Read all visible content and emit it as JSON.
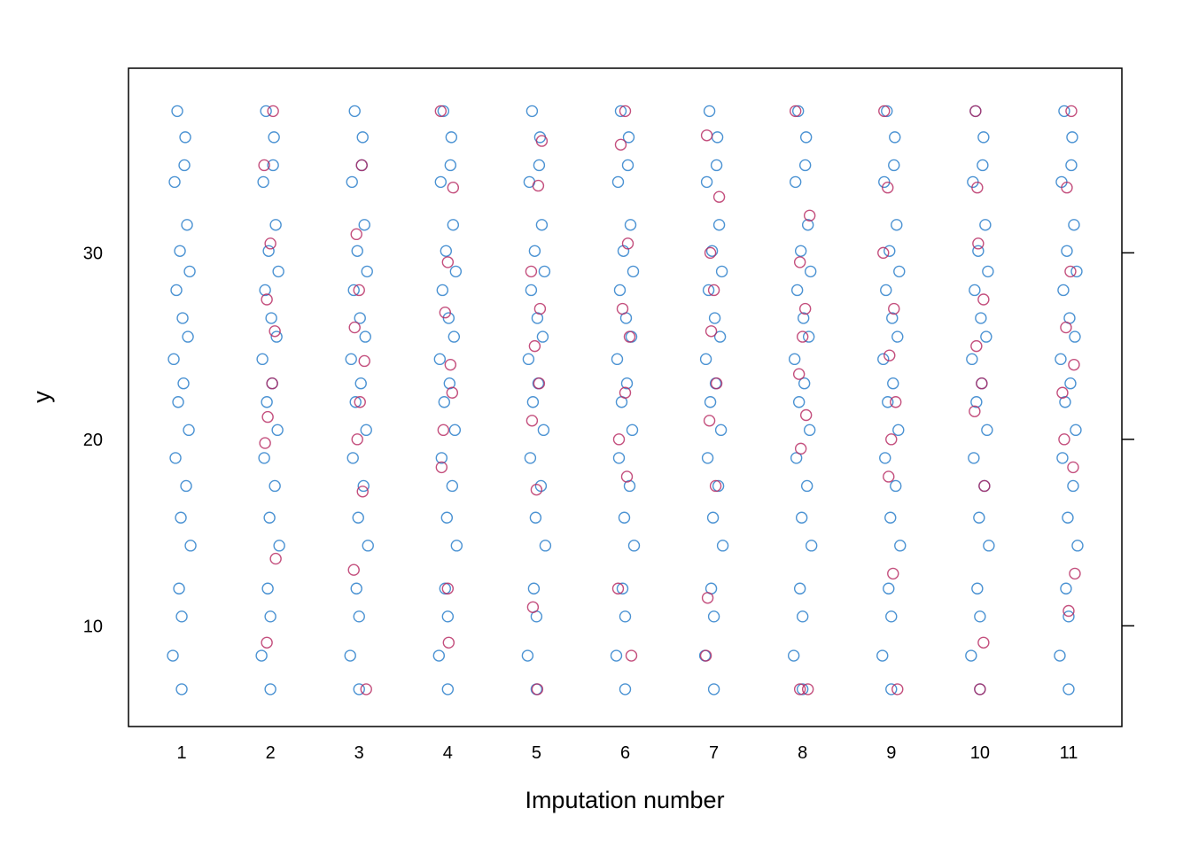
{
  "chart_data": {
    "type": "scatter",
    "xlabel": "Imputation number",
    "ylabel": "y",
    "xlim": [
      0.4,
      11.6
    ],
    "ylim": [
      4.6,
      39.9
    ],
    "xticks": [
      1,
      2,
      3,
      4,
      5,
      6,
      7,
      8,
      9,
      10,
      11
    ],
    "yticks": [
      10,
      20,
      30
    ],
    "series": [
      {
        "color": "#1f78c8",
        "x": [
          0.95,
          1.04,
          1.03,
          0.92,
          1.06,
          0.98,
          1.09,
          0.94,
          1.01,
          1.07,
          0.91,
          1.02,
          0.96,
          1.08,
          0.93,
          1.05,
          0.99,
          1.1,
          0.97,
          1.0,
          0.9,
          1.0
        ],
        "values": [
          37.6,
          36.2,
          34.7,
          33.8,
          31.5,
          30.1,
          29.0,
          28.0,
          26.5,
          25.5,
          24.3,
          23.0,
          22.0,
          20.5,
          19.0,
          17.5,
          15.8,
          14.3,
          12.0,
          10.5,
          8.4,
          6.6
        ]
      },
      {
        "color": "#1f78c8",
        "x": [
          1.95,
          2.04,
          2.03,
          1.92,
          2.06,
          1.98,
          2.09,
          1.94,
          2.01,
          2.07,
          1.91,
          2.02,
          1.96,
          2.08,
          1.93,
          2.05,
          1.99,
          2.1,
          1.97,
          2.0,
          1.9,
          2.0
        ],
        "values": [
          37.6,
          36.2,
          34.7,
          33.8,
          31.5,
          30.1,
          29.0,
          28.0,
          26.5,
          25.5,
          24.3,
          23.0,
          22.0,
          20.5,
          19.0,
          17.5,
          15.8,
          14.3,
          12.0,
          10.5,
          8.4,
          6.6
        ]
      },
      {
        "color": "#1f78c8",
        "x": [
          2.95,
          3.04,
          3.03,
          2.92,
          3.06,
          2.98,
          3.09,
          2.94,
          3.01,
          3.07,
          2.91,
          3.02,
          2.96,
          3.08,
          2.93,
          3.05,
          2.99,
          3.1,
          2.97,
          3.0,
          2.9,
          3.0
        ],
        "values": [
          37.6,
          36.2,
          34.7,
          33.8,
          31.5,
          30.1,
          29.0,
          28.0,
          26.5,
          25.5,
          24.3,
          23.0,
          22.0,
          20.5,
          19.0,
          17.5,
          15.8,
          14.3,
          12.0,
          10.5,
          8.4,
          6.6
        ]
      },
      {
        "color": "#1f78c8",
        "x": [
          3.95,
          4.04,
          4.03,
          3.92,
          4.06,
          3.98,
          4.09,
          3.94,
          4.01,
          4.07,
          3.91,
          4.02,
          3.96,
          4.08,
          3.93,
          4.05,
          3.99,
          4.1,
          3.97,
          4.0,
          3.9,
          4.0
        ],
        "values": [
          37.6,
          36.2,
          34.7,
          33.8,
          31.5,
          30.1,
          29.0,
          28.0,
          26.5,
          25.5,
          24.3,
          23.0,
          22.0,
          20.5,
          19.0,
          17.5,
          15.8,
          14.3,
          12.0,
          10.5,
          8.4,
          6.6
        ]
      },
      {
        "color": "#1f78c8",
        "x": [
          4.95,
          5.04,
          5.03,
          4.92,
          5.06,
          4.98,
          5.09,
          4.94,
          5.01,
          5.07,
          4.91,
          5.02,
          4.96,
          5.08,
          4.93,
          5.05,
          4.99,
          5.1,
          4.97,
          5.0,
          4.9,
          5.0
        ],
        "values": [
          37.6,
          36.2,
          34.7,
          33.8,
          31.5,
          30.1,
          29.0,
          28.0,
          26.5,
          25.5,
          24.3,
          23.0,
          22.0,
          20.5,
          19.0,
          17.5,
          15.8,
          14.3,
          12.0,
          10.5,
          8.4,
          6.6
        ]
      },
      {
        "color": "#1f78c8",
        "x": [
          5.95,
          6.04,
          6.03,
          5.92,
          6.06,
          5.98,
          6.09,
          5.94,
          6.01,
          6.07,
          5.91,
          6.02,
          5.96,
          6.08,
          5.93,
          6.05,
          5.99,
          6.1,
          5.97,
          6.0,
          5.9,
          6.0
        ],
        "values": [
          37.6,
          36.2,
          34.7,
          33.8,
          31.5,
          30.1,
          29.0,
          28.0,
          26.5,
          25.5,
          24.3,
          23.0,
          22.0,
          20.5,
          19.0,
          17.5,
          15.8,
          14.3,
          12.0,
          10.5,
          8.4,
          6.6
        ]
      },
      {
        "color": "#1f78c8",
        "x": [
          6.95,
          7.04,
          7.03,
          6.92,
          7.06,
          6.98,
          7.09,
          6.94,
          7.01,
          7.07,
          6.91,
          7.02,
          6.96,
          7.08,
          6.93,
          7.05,
          6.99,
          7.1,
          6.97,
          7.0,
          6.9,
          7.0
        ],
        "values": [
          37.6,
          36.2,
          34.7,
          33.8,
          31.5,
          30.1,
          29.0,
          28.0,
          26.5,
          25.5,
          24.3,
          23.0,
          22.0,
          20.5,
          19.0,
          17.5,
          15.8,
          14.3,
          12.0,
          10.5,
          8.4,
          6.6
        ]
      },
      {
        "color": "#1f78c8",
        "x": [
          7.95,
          8.04,
          8.03,
          7.92,
          8.06,
          7.98,
          8.09,
          7.94,
          8.01,
          8.07,
          7.91,
          8.02,
          7.96,
          8.08,
          7.93,
          8.05,
          7.99,
          8.1,
          7.97,
          8.0,
          7.9,
          8.0
        ],
        "values": [
          37.6,
          36.2,
          34.7,
          33.8,
          31.5,
          30.1,
          29.0,
          28.0,
          26.5,
          25.5,
          24.3,
          23.0,
          22.0,
          20.5,
          19.0,
          17.5,
          15.8,
          14.3,
          12.0,
          10.5,
          8.4,
          6.6
        ]
      },
      {
        "color": "#1f78c8",
        "x": [
          8.95,
          9.04,
          9.03,
          8.92,
          9.06,
          8.98,
          9.09,
          8.94,
          9.01,
          9.07,
          8.91,
          9.02,
          8.96,
          9.08,
          8.93,
          9.05,
          8.99,
          9.1,
          8.97,
          9.0,
          8.9,
          9.0
        ],
        "values": [
          37.6,
          36.2,
          34.7,
          33.8,
          31.5,
          30.1,
          29.0,
          28.0,
          26.5,
          25.5,
          24.3,
          23.0,
          22.0,
          20.5,
          19.0,
          17.5,
          15.8,
          14.3,
          12.0,
          10.5,
          8.4,
          6.6
        ]
      },
      {
        "color": "#1f78c8",
        "x": [
          9.95,
          10.04,
          10.03,
          9.92,
          10.06,
          9.98,
          10.09,
          9.94,
          10.01,
          10.07,
          9.91,
          10.02,
          9.96,
          10.08,
          9.93,
          10.05,
          9.99,
          10.1,
          9.97,
          10.0,
          9.9,
          10.0
        ],
        "values": [
          37.6,
          36.2,
          34.7,
          33.8,
          31.5,
          30.1,
          29.0,
          28.0,
          26.5,
          25.5,
          24.3,
          23.0,
          22.0,
          20.5,
          19.0,
          17.5,
          15.8,
          14.3,
          12.0,
          10.5,
          8.4,
          6.6
        ]
      },
      {
        "color": "#1f78c8",
        "x": [
          10.95,
          11.04,
          11.03,
          10.92,
          11.06,
          10.98,
          11.09,
          10.94,
          11.01,
          11.07,
          10.91,
          11.02,
          10.96,
          11.08,
          10.93,
          11.05,
          10.99,
          11.1,
          10.97,
          11.0,
          10.9,
          11.0
        ],
        "values": [
          37.6,
          36.2,
          34.7,
          33.8,
          31.5,
          30.1,
          29.0,
          28.0,
          26.5,
          25.5,
          24.3,
          23.0,
          22.0,
          20.5,
          19.0,
          17.5,
          15.8,
          14.3,
          12.0,
          10.5,
          8.4,
          6.6
        ]
      },
      {
        "color": "#b5245e",
        "x": [
          2.03,
          1.93,
          2.0,
          1.96,
          2.05,
          2.02,
          1.97,
          1.94,
          2.06,
          1.96
        ],
        "values": [
          37.6,
          34.7,
          30.5,
          27.5,
          25.8,
          23.0,
          21.2,
          19.8,
          13.6,
          9.1
        ]
      },
      {
        "color": "#b5245e",
        "x": [
          3.03,
          2.97,
          3.0,
          2.95,
          3.06,
          3.01,
          2.98,
          3.04,
          2.94,
          3.08
        ],
        "values": [
          34.7,
          31.0,
          28.0,
          26.0,
          24.2,
          22.0,
          20.0,
          17.2,
          13.0,
          6.6
        ]
      },
      {
        "color": "#b5245e",
        "x": [
          3.92,
          4.06,
          4.0,
          3.97,
          4.03,
          4.05,
          3.95,
          3.93,
          4.0,
          4.01
        ],
        "values": [
          37.6,
          33.5,
          29.5,
          26.8,
          24.0,
          22.5,
          20.5,
          18.5,
          12.0,
          9.1
        ]
      },
      {
        "color": "#b5245e",
        "x": [
          5.06,
          5.02,
          4.94,
          5.04,
          4.98,
          5.03,
          4.95,
          5.0,
          4.96,
          5.01
        ],
        "values": [
          36.0,
          33.6,
          29.0,
          27.0,
          25.0,
          23.0,
          21.0,
          17.3,
          11.0,
          6.6
        ]
      },
      {
        "color": "#b5245e",
        "x": [
          6.0,
          5.95,
          6.03,
          5.97,
          6.05,
          6.0,
          5.93,
          6.02,
          5.92,
          6.07
        ],
        "values": [
          37.6,
          35.8,
          30.5,
          27.0,
          25.5,
          22.5,
          20.0,
          18.0,
          12.0,
          8.4
        ]
      },
      {
        "color": "#b5245e",
        "x": [
          6.92,
          7.06,
          6.96,
          7.0,
          6.97,
          7.03,
          6.95,
          7.02,
          6.93,
          6.91
        ],
        "values": [
          36.3,
          33.0,
          30.0,
          28.0,
          25.8,
          23.0,
          21.0,
          17.5,
          11.5,
          8.4
        ]
      },
      {
        "color": "#b5245e",
        "x": [
          7.92,
          8.08,
          7.97,
          8.03,
          8.0,
          7.96,
          8.04,
          7.98,
          7.97,
          8.06
        ],
        "values": [
          37.6,
          32.0,
          29.5,
          27.0,
          25.5,
          23.5,
          21.3,
          19.5,
          6.6,
          6.6
        ]
      },
      {
        "color": "#b5245e",
        "x": [
          8.92,
          8.96,
          8.91,
          9.03,
          8.98,
          9.05,
          9.0,
          8.97,
          9.02,
          9.07
        ],
        "values": [
          37.6,
          33.5,
          30.0,
          27.0,
          24.5,
          22.0,
          20.0,
          18.0,
          12.8,
          6.6
        ]
      },
      {
        "color": "#b5245e",
        "x": [
          9.95,
          9.97,
          9.98,
          10.04,
          9.96,
          10.02,
          9.94,
          10.05,
          10.04,
          10.0
        ],
        "values": [
          37.6,
          33.5,
          30.5,
          27.5,
          25.0,
          23.0,
          21.5,
          17.5,
          9.1,
          6.6
        ]
      },
      {
        "color": "#b5245e",
        "x": [
          11.03,
          10.98,
          11.02,
          10.97,
          11.06,
          10.93,
          10.95,
          11.05,
          11.0,
          11.07
        ],
        "values": [
          37.6,
          33.5,
          29.0,
          26.0,
          24.0,
          22.5,
          20.0,
          18.5,
          10.8,
          12.8
        ]
      }
    ]
  }
}
